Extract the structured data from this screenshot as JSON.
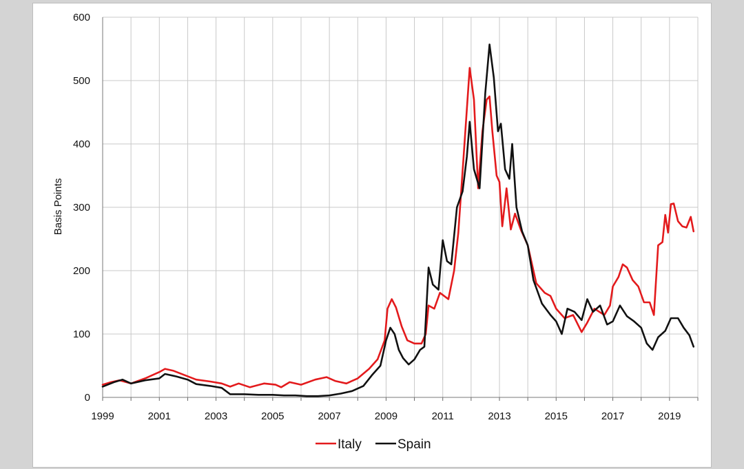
{
  "chart_data": {
    "type": "line",
    "title": "",
    "xlabel": "",
    "ylabel": "Basis Points",
    "xlim": [
      1999.0,
      2020.0
    ],
    "ylim": [
      0,
      600
    ],
    "y_ticks": [
      0,
      100,
      200,
      300,
      400,
      500,
      600
    ],
    "x_tick_labels": [
      "1999",
      "2001",
      "2003",
      "2005",
      "2007",
      "2009",
      "2011",
      "2013",
      "2015",
      "2017",
      "2019"
    ],
    "grid": true,
    "legend_position": "bottom-center",
    "series": [
      {
        "name": "Italy",
        "color": "#e31a1c",
        "points": [
          [
            1999.0,
            20
          ],
          [
            1999.3,
            24
          ],
          [
            1999.6,
            27
          ],
          [
            2000.0,
            22
          ],
          [
            2000.5,
            30
          ],
          [
            2001.0,
            40
          ],
          [
            2001.2,
            45
          ],
          [
            2001.5,
            42
          ],
          [
            2001.9,
            35
          ],
          [
            2002.3,
            28
          ],
          [
            2002.8,
            25
          ],
          [
            2003.2,
            22
          ],
          [
            2003.5,
            17
          ],
          [
            2003.8,
            22
          ],
          [
            2004.2,
            16
          ],
          [
            2004.7,
            22
          ],
          [
            2005.1,
            20
          ],
          [
            2005.3,
            16
          ],
          [
            2005.6,
            24
          ],
          [
            2006.0,
            20
          ],
          [
            2006.5,
            28
          ],
          [
            2006.9,
            32
          ],
          [
            2007.2,
            26
          ],
          [
            2007.6,
            22
          ],
          [
            2008.0,
            30
          ],
          [
            2008.4,
            45
          ],
          [
            2008.7,
            60
          ],
          [
            2008.95,
            90
          ],
          [
            2009.05,
            140
          ],
          [
            2009.2,
            155
          ],
          [
            2009.35,
            142
          ],
          [
            2009.55,
            112
          ],
          [
            2009.75,
            90
          ],
          [
            2010.0,
            85
          ],
          [
            2010.25,
            85
          ],
          [
            2010.4,
            100
          ],
          [
            2010.5,
            145
          ],
          [
            2010.7,
            140
          ],
          [
            2010.9,
            165
          ],
          [
            2011.05,
            160
          ],
          [
            2011.2,
            155
          ],
          [
            2011.4,
            200
          ],
          [
            2011.55,
            260
          ],
          [
            2011.75,
            390
          ],
          [
            2011.95,
            520
          ],
          [
            2012.1,
            470
          ],
          [
            2012.25,
            330
          ],
          [
            2012.4,
            420
          ],
          [
            2012.55,
            470
          ],
          [
            2012.65,
            475
          ],
          [
            2012.75,
            420
          ],
          [
            2012.9,
            350
          ],
          [
            2013.0,
            340
          ],
          [
            2013.1,
            270
          ],
          [
            2013.25,
            330
          ],
          [
            2013.4,
            265
          ],
          [
            2013.55,
            290
          ],
          [
            2013.75,
            265
          ],
          [
            2014.0,
            240
          ],
          [
            2014.3,
            180
          ],
          [
            2014.6,
            165
          ],
          [
            2014.8,
            160
          ],
          [
            2015.0,
            140
          ],
          [
            2015.3,
            125
          ],
          [
            2015.6,
            130
          ],
          [
            2015.9,
            103
          ],
          [
            2016.1,
            118
          ],
          [
            2016.35,
            140
          ],
          [
            2016.7,
            130
          ],
          [
            2016.9,
            145
          ],
          [
            2017.0,
            175
          ],
          [
            2017.2,
            190
          ],
          [
            2017.35,
            210
          ],
          [
            2017.5,
            205
          ],
          [
            2017.7,
            185
          ],
          [
            2017.9,
            175
          ],
          [
            2018.1,
            150
          ],
          [
            2018.3,
            150
          ],
          [
            2018.45,
            130
          ],
          [
            2018.6,
            240
          ],
          [
            2018.75,
            245
          ],
          [
            2018.85,
            288
          ],
          [
            2018.95,
            260
          ],
          [
            2019.05,
            305
          ],
          [
            2019.15,
            306
          ],
          [
            2019.3,
            278
          ],
          [
            2019.45,
            270
          ],
          [
            2019.6,
            268
          ],
          [
            2019.75,
            285
          ],
          [
            2019.85,
            262
          ]
        ]
      },
      {
        "name": "Spain",
        "color": "#111111",
        "points": [
          [
            1999.0,
            17
          ],
          [
            1999.4,
            24
          ],
          [
            1999.7,
            28
          ],
          [
            2000.0,
            22
          ],
          [
            2000.5,
            27
          ],
          [
            2001.0,
            30
          ],
          [
            2001.2,
            37
          ],
          [
            2001.6,
            33
          ],
          [
            2002.0,
            28
          ],
          [
            2002.3,
            21
          ],
          [
            2002.8,
            18
          ],
          [
            2003.2,
            15
          ],
          [
            2003.5,
            5
          ],
          [
            2004.0,
            5
          ],
          [
            2004.5,
            4
          ],
          [
            2005.0,
            4
          ],
          [
            2005.4,
            3
          ],
          [
            2005.8,
            3
          ],
          [
            2006.2,
            2
          ],
          [
            2006.6,
            2
          ],
          [
            2007.0,
            3
          ],
          [
            2007.4,
            6
          ],
          [
            2007.8,
            10
          ],
          [
            2008.2,
            18
          ],
          [
            2008.5,
            35
          ],
          [
            2008.8,
            50
          ],
          [
            2009.0,
            90
          ],
          [
            2009.15,
            110
          ],
          [
            2009.3,
            100
          ],
          [
            2009.45,
            75
          ],
          [
            2009.6,
            62
          ],
          [
            2009.8,
            52
          ],
          [
            2010.0,
            60
          ],
          [
            2010.2,
            75
          ],
          [
            2010.35,
            80
          ],
          [
            2010.5,
            205
          ],
          [
            2010.65,
            178
          ],
          [
            2010.85,
            170
          ],
          [
            2011.0,
            248
          ],
          [
            2011.15,
            215
          ],
          [
            2011.3,
            210
          ],
          [
            2011.5,
            300
          ],
          [
            2011.7,
            325
          ],
          [
            2011.85,
            380
          ],
          [
            2011.95,
            435
          ],
          [
            2012.1,
            360
          ],
          [
            2012.3,
            330
          ],
          [
            2012.5,
            480
          ],
          [
            2012.65,
            557
          ],
          [
            2012.8,
            505
          ],
          [
            2012.95,
            420
          ],
          [
            2013.05,
            432
          ],
          [
            2013.2,
            360
          ],
          [
            2013.35,
            345
          ],
          [
            2013.45,
            400
          ],
          [
            2013.6,
            300
          ],
          [
            2013.8,
            262
          ],
          [
            2014.0,
            240
          ],
          [
            2014.2,
            185
          ],
          [
            2014.5,
            148
          ],
          [
            2014.8,
            130
          ],
          [
            2015.0,
            120
          ],
          [
            2015.2,
            100
          ],
          [
            2015.4,
            140
          ],
          [
            2015.65,
            135
          ],
          [
            2015.9,
            122
          ],
          [
            2016.1,
            155
          ],
          [
            2016.3,
            135
          ],
          [
            2016.55,
            145
          ],
          [
            2016.8,
            115
          ],
          [
            2017.0,
            120
          ],
          [
            2017.25,
            145
          ],
          [
            2017.5,
            128
          ],
          [
            2017.75,
            120
          ],
          [
            2018.0,
            110
          ],
          [
            2018.2,
            85
          ],
          [
            2018.4,
            75
          ],
          [
            2018.6,
            95
          ],
          [
            2018.85,
            105
          ],
          [
            2019.05,
            125
          ],
          [
            2019.3,
            125
          ],
          [
            2019.5,
            110
          ],
          [
            2019.7,
            98
          ],
          [
            2019.85,
            80
          ]
        ]
      }
    ]
  }
}
